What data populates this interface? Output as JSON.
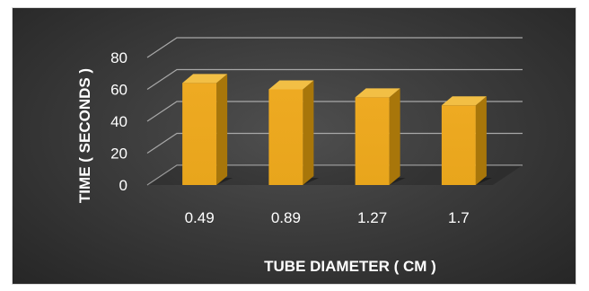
{
  "chart_data": {
    "type": "bar",
    "style": "3d-column",
    "categories": [
      "0.49",
      "0.89",
      "1.27",
      "1.7"
    ],
    "values": [
      64,
      60,
      55,
      50
    ],
    "xlabel": "TUBE DIAMETER ( CM )",
    "ylabel": "TIME ( SECONDS )",
    "ylim": [
      0,
      80
    ],
    "yticks": [
      0,
      20,
      40,
      60,
      80
    ],
    "grid": true,
    "legend": "none",
    "colors": {
      "bar_front": "#e8a51c",
      "bar_side": "#a8760a",
      "bar_top": "#f2bf45",
      "background": "#3a3a3a",
      "gridline": "#a8a8a8",
      "text": "#ffffff"
    }
  }
}
